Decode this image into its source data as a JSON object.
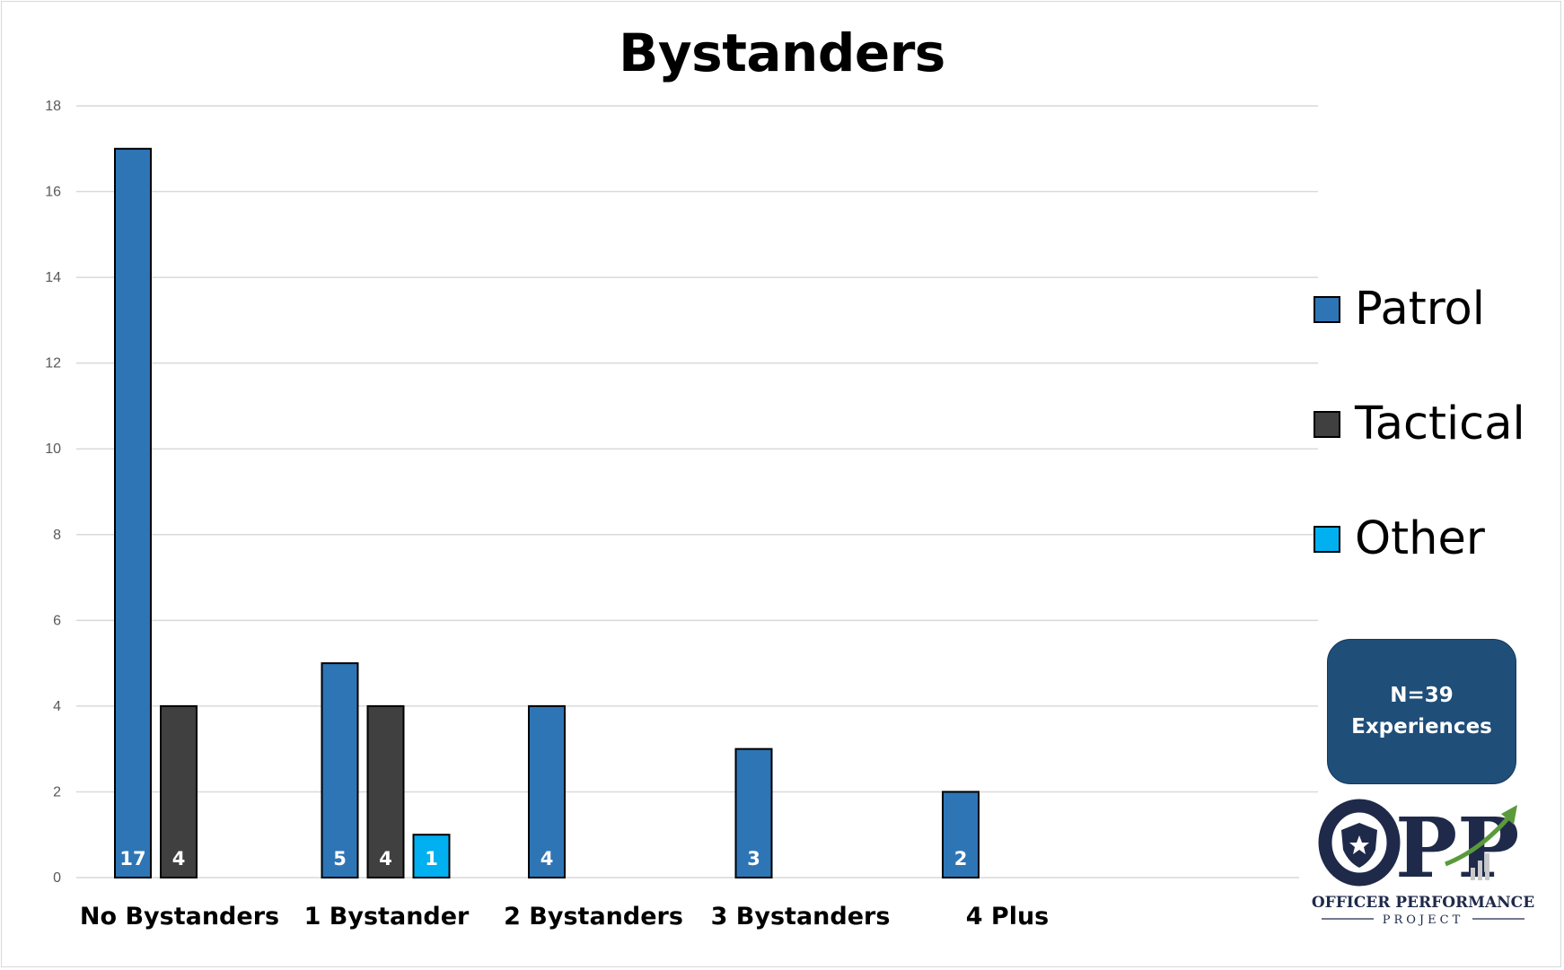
{
  "chart_data": {
    "type": "bar",
    "title": "Bystanders",
    "categories": [
      "No Bystanders",
      "1 Bystander",
      "2 Bystanders",
      "3 Bystanders",
      "4 Plus"
    ],
    "series": [
      {
        "name": "Patrol",
        "color": "#2e75b6",
        "values": [
          17,
          5,
          4,
          3,
          2
        ]
      },
      {
        "name": "Tactical",
        "color": "#404040",
        "values": [
          4,
          4,
          null,
          null,
          null
        ]
      },
      {
        "name": "Other",
        "color": "#00b0f0",
        "values": [
          null,
          1,
          null,
          null,
          null
        ]
      }
    ],
    "ylim": [
      0,
      18
    ],
    "yticks": [
      0,
      2,
      4,
      6,
      8,
      10,
      12,
      14,
      16,
      18
    ],
    "grid": true,
    "legend_position": "right",
    "data_labels": true
  },
  "annotation": {
    "line1": "N=39",
    "line2": "Experiences",
    "color": "#1f4e79"
  },
  "logo": {
    "mark": "OPP",
    "line1": "OFFICER PERFORMANCE",
    "line2": "PROJECT",
    "icon": "police-badge-icon",
    "arrow": "growth-arrow-icon",
    "color": "#1f2a4a",
    "arrow_color": "#5a9a3b"
  }
}
